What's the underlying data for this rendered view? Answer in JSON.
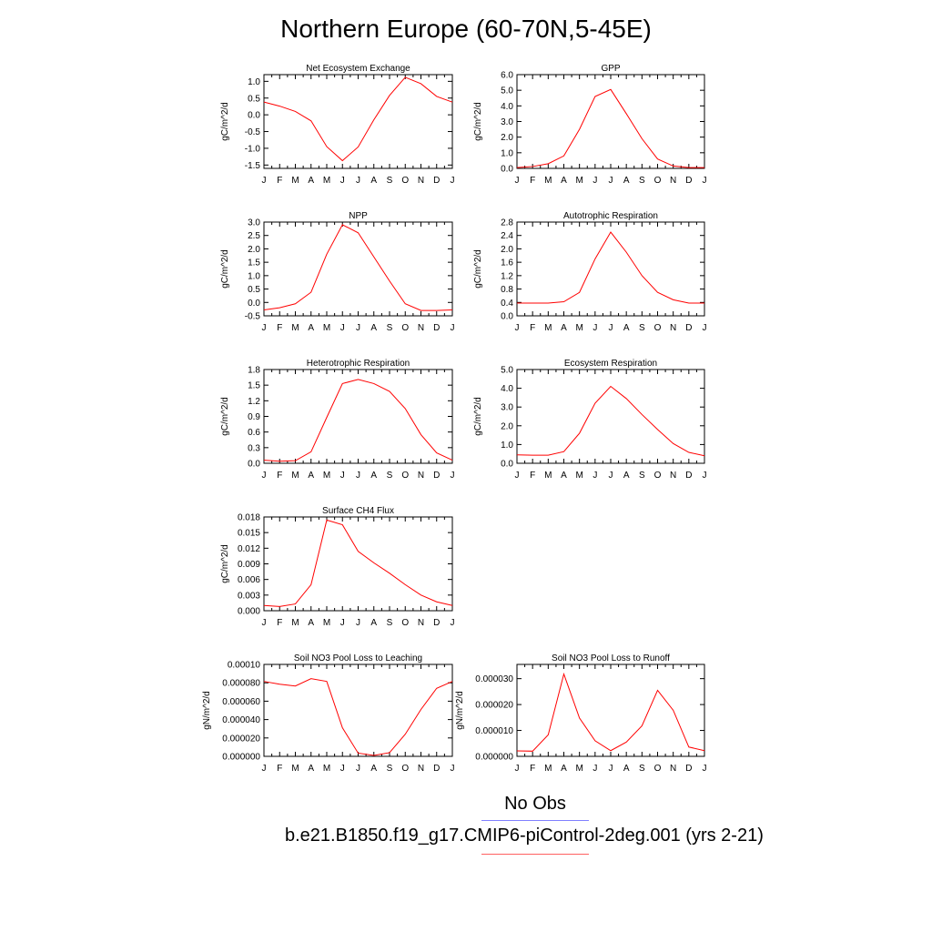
{
  "title": "Northern Europe (60-70N,5-45E)",
  "legend": [
    {
      "label": "No Obs",
      "color": "#8080ff"
    },
    {
      "label": "b.e21.B1850.f19_g17.CMIP6-piControl-2deg.001 (yrs 2-21)",
      "color": "#ff6060"
    }
  ],
  "line_color": "#ff0000",
  "chart_data": [
    {
      "type": "line",
      "title": "Net Ecosystem Exchange",
      "ylabel": "gC/m^2/d",
      "categories": [
        "J",
        "F",
        "M",
        "A",
        "M",
        "J",
        "J",
        "A",
        "S",
        "O",
        "N",
        "D",
        "J"
      ],
      "ylim": [
        -1.6,
        1.2
      ],
      "yticks": [
        -1.5,
        -1.0,
        -0.5,
        0.0,
        0.5,
        1.0
      ],
      "ytick_labels": [
        "-1.5",
        "-1.0",
        "-0.5",
        "0.0",
        "0.5",
        "1.0"
      ],
      "values": [
        0.38,
        0.26,
        0.1,
        -0.18,
        -0.95,
        -1.37,
        -0.96,
        -0.15,
        0.58,
        1.12,
        0.93,
        0.55,
        0.38
      ]
    },
    {
      "type": "line",
      "title": "GPP",
      "ylabel": "gC/m^2/d",
      "categories": [
        "J",
        "F",
        "M",
        "A",
        "M",
        "J",
        "J",
        "A",
        "S",
        "O",
        "N",
        "D",
        "J"
      ],
      "ylim": [
        0,
        6.0
      ],
      "yticks": [
        0,
        1,
        2,
        3,
        4,
        5,
        6
      ],
      "ytick_labels": [
        "0.0",
        "1.0",
        "2.0",
        "3.0",
        "4.0",
        "5.0",
        "6.0"
      ],
      "values": [
        0.05,
        0.12,
        0.3,
        0.8,
        2.5,
        4.6,
        5.05,
        3.5,
        1.9,
        0.6,
        0.15,
        0.05,
        0.05
      ]
    },
    {
      "type": "line",
      "title": "NPP",
      "ylabel": "gC/m^2/d",
      "categories": [
        "J",
        "F",
        "M",
        "A",
        "M",
        "J",
        "J",
        "A",
        "S",
        "O",
        "N",
        "D",
        "J"
      ],
      "ylim": [
        -0.5,
        3.0
      ],
      "yticks": [
        -0.5,
        0,
        0.5,
        1.0,
        1.5,
        2.0,
        2.5,
        3.0
      ],
      "ytick_labels": [
        "-0.5",
        "0.0",
        "0.5",
        "1.0",
        "1.5",
        "2.0",
        "2.5",
        "3.0"
      ],
      "values": [
        -0.28,
        -0.2,
        -0.05,
        0.38,
        1.8,
        2.9,
        2.6,
        1.7,
        0.8,
        -0.05,
        -0.3,
        -0.3,
        -0.28
      ]
    },
    {
      "type": "line",
      "title": "Autotrophic Respiration",
      "ylabel": "gC/m^2/d",
      "categories": [
        "J",
        "F",
        "M",
        "A",
        "M",
        "J",
        "J",
        "A",
        "S",
        "O",
        "N",
        "D",
        "J"
      ],
      "ylim": [
        0,
        2.8
      ],
      "yticks": [
        0,
        0.4,
        0.8,
        1.2,
        1.6,
        2.0,
        2.4,
        2.8
      ],
      "ytick_labels": [
        "0.0",
        "0.4",
        "0.8",
        "1.2",
        "1.6",
        "2.0",
        "2.4",
        "2.8"
      ],
      "values": [
        0.38,
        0.38,
        0.38,
        0.42,
        0.7,
        1.7,
        2.5,
        1.9,
        1.2,
        0.7,
        0.48,
        0.38,
        0.38
      ]
    },
    {
      "type": "line",
      "title": "Heterotrophic Respiration",
      "ylabel": "gC/m^2/d",
      "categories": [
        "J",
        "F",
        "M",
        "A",
        "M",
        "J",
        "J",
        "A",
        "S",
        "O",
        "N",
        "D",
        "J"
      ],
      "ylim": [
        0,
        1.8
      ],
      "yticks": [
        0,
        0.3,
        0.6,
        0.9,
        1.2,
        1.5,
        1.8
      ],
      "ytick_labels": [
        "0.0",
        "0.3",
        "0.6",
        "0.9",
        "1.2",
        "1.5",
        "1.8"
      ],
      "values": [
        0.06,
        0.04,
        0.05,
        0.22,
        0.88,
        1.53,
        1.61,
        1.53,
        1.38,
        1.05,
        0.55,
        0.2,
        0.06
      ]
    },
    {
      "type": "line",
      "title": "Ecosystem Respiration",
      "ylabel": "gC/m^2/d",
      "categories": [
        "J",
        "F",
        "M",
        "A",
        "M",
        "J",
        "J",
        "A",
        "S",
        "O",
        "N",
        "D",
        "J"
      ],
      "ylim": [
        0,
        5.0
      ],
      "yticks": [
        0,
        1,
        2,
        3,
        4,
        5
      ],
      "ytick_labels": [
        "0.0",
        "1.0",
        "2.0",
        "3.0",
        "4.0",
        "5.0"
      ],
      "values": [
        0.45,
        0.43,
        0.43,
        0.62,
        1.6,
        3.2,
        4.1,
        3.45,
        2.6,
        1.8,
        1.05,
        0.58,
        0.4
      ]
    },
    {
      "type": "line",
      "title": "Surface CH4 Flux",
      "ylabel": "gC/m^2/d",
      "categories": [
        "J",
        "F",
        "M",
        "A",
        "M",
        "J",
        "J",
        "A",
        "S",
        "O",
        "N",
        "D",
        "J"
      ],
      "ylim": [
        0,
        0.018
      ],
      "yticks": [
        0,
        0.003,
        0.006,
        0.009,
        0.012,
        0.015,
        0.018
      ],
      "ytick_labels": [
        "0.000",
        "0.003",
        "0.006",
        "0.009",
        "0.012",
        "0.015",
        "0.018"
      ],
      "values": [
        0.001,
        0.0008,
        0.0013,
        0.005,
        0.0174,
        0.0165,
        0.0114,
        0.0092,
        0.0072,
        0.005,
        0.003,
        0.0017,
        0.001
      ]
    },
    {
      "type": "line",
      "title": "Soil NO3 Pool Loss to Leaching",
      "ylabel": "gN/m^2/d",
      "categories": [
        "J",
        "F",
        "M",
        "A",
        "M",
        "J",
        "J",
        "A",
        "S",
        "O",
        "N",
        "D",
        "J"
      ],
      "ylim": [
        0,
        0.0001
      ],
      "yticks": [
        0,
        2e-05,
        4e-05,
        6e-05,
        8e-05,
        0.0001
      ],
      "ytick_labels": [
        "0.000000",
        "0.000020",
        "0.000040",
        "0.000060",
        "0.000080",
        "0.00010"
      ],
      "values": [
        8.15e-05,
        7.85e-05,
        7.65e-05,
        8.45e-05,
        8.15e-05,
        3.1e-05,
        3.5e-06,
        1e-06,
        4e-06,
        2.4e-05,
        5.1e-05,
        7.4e-05,
        8.15e-05
      ]
    },
    {
      "type": "line",
      "title": "Soil NO3 Pool Loss to Runoff",
      "ylabel": "gN/m^2/d",
      "categories": [
        "J",
        "F",
        "M",
        "A",
        "M",
        "J",
        "J",
        "A",
        "S",
        "O",
        "N",
        "D",
        "J"
      ],
      "ylim": [
        0,
        3.55e-05
      ],
      "yticks": [
        0,
        1e-05,
        2e-05,
        3e-05
      ],
      "ytick_labels": [
        "0.000000",
        "0.000010",
        "0.000020",
        "0.000030"
      ],
      "values": [
        2.1e-06,
        2e-06,
        8.3e-06,
        3.18e-05,
        1.48e-05,
        6e-06,
        2.2e-06,
        5.5e-06,
        1.18e-05,
        2.55e-05,
        1.78e-05,
        3.6e-06,
        2.2e-06
      ]
    }
  ]
}
